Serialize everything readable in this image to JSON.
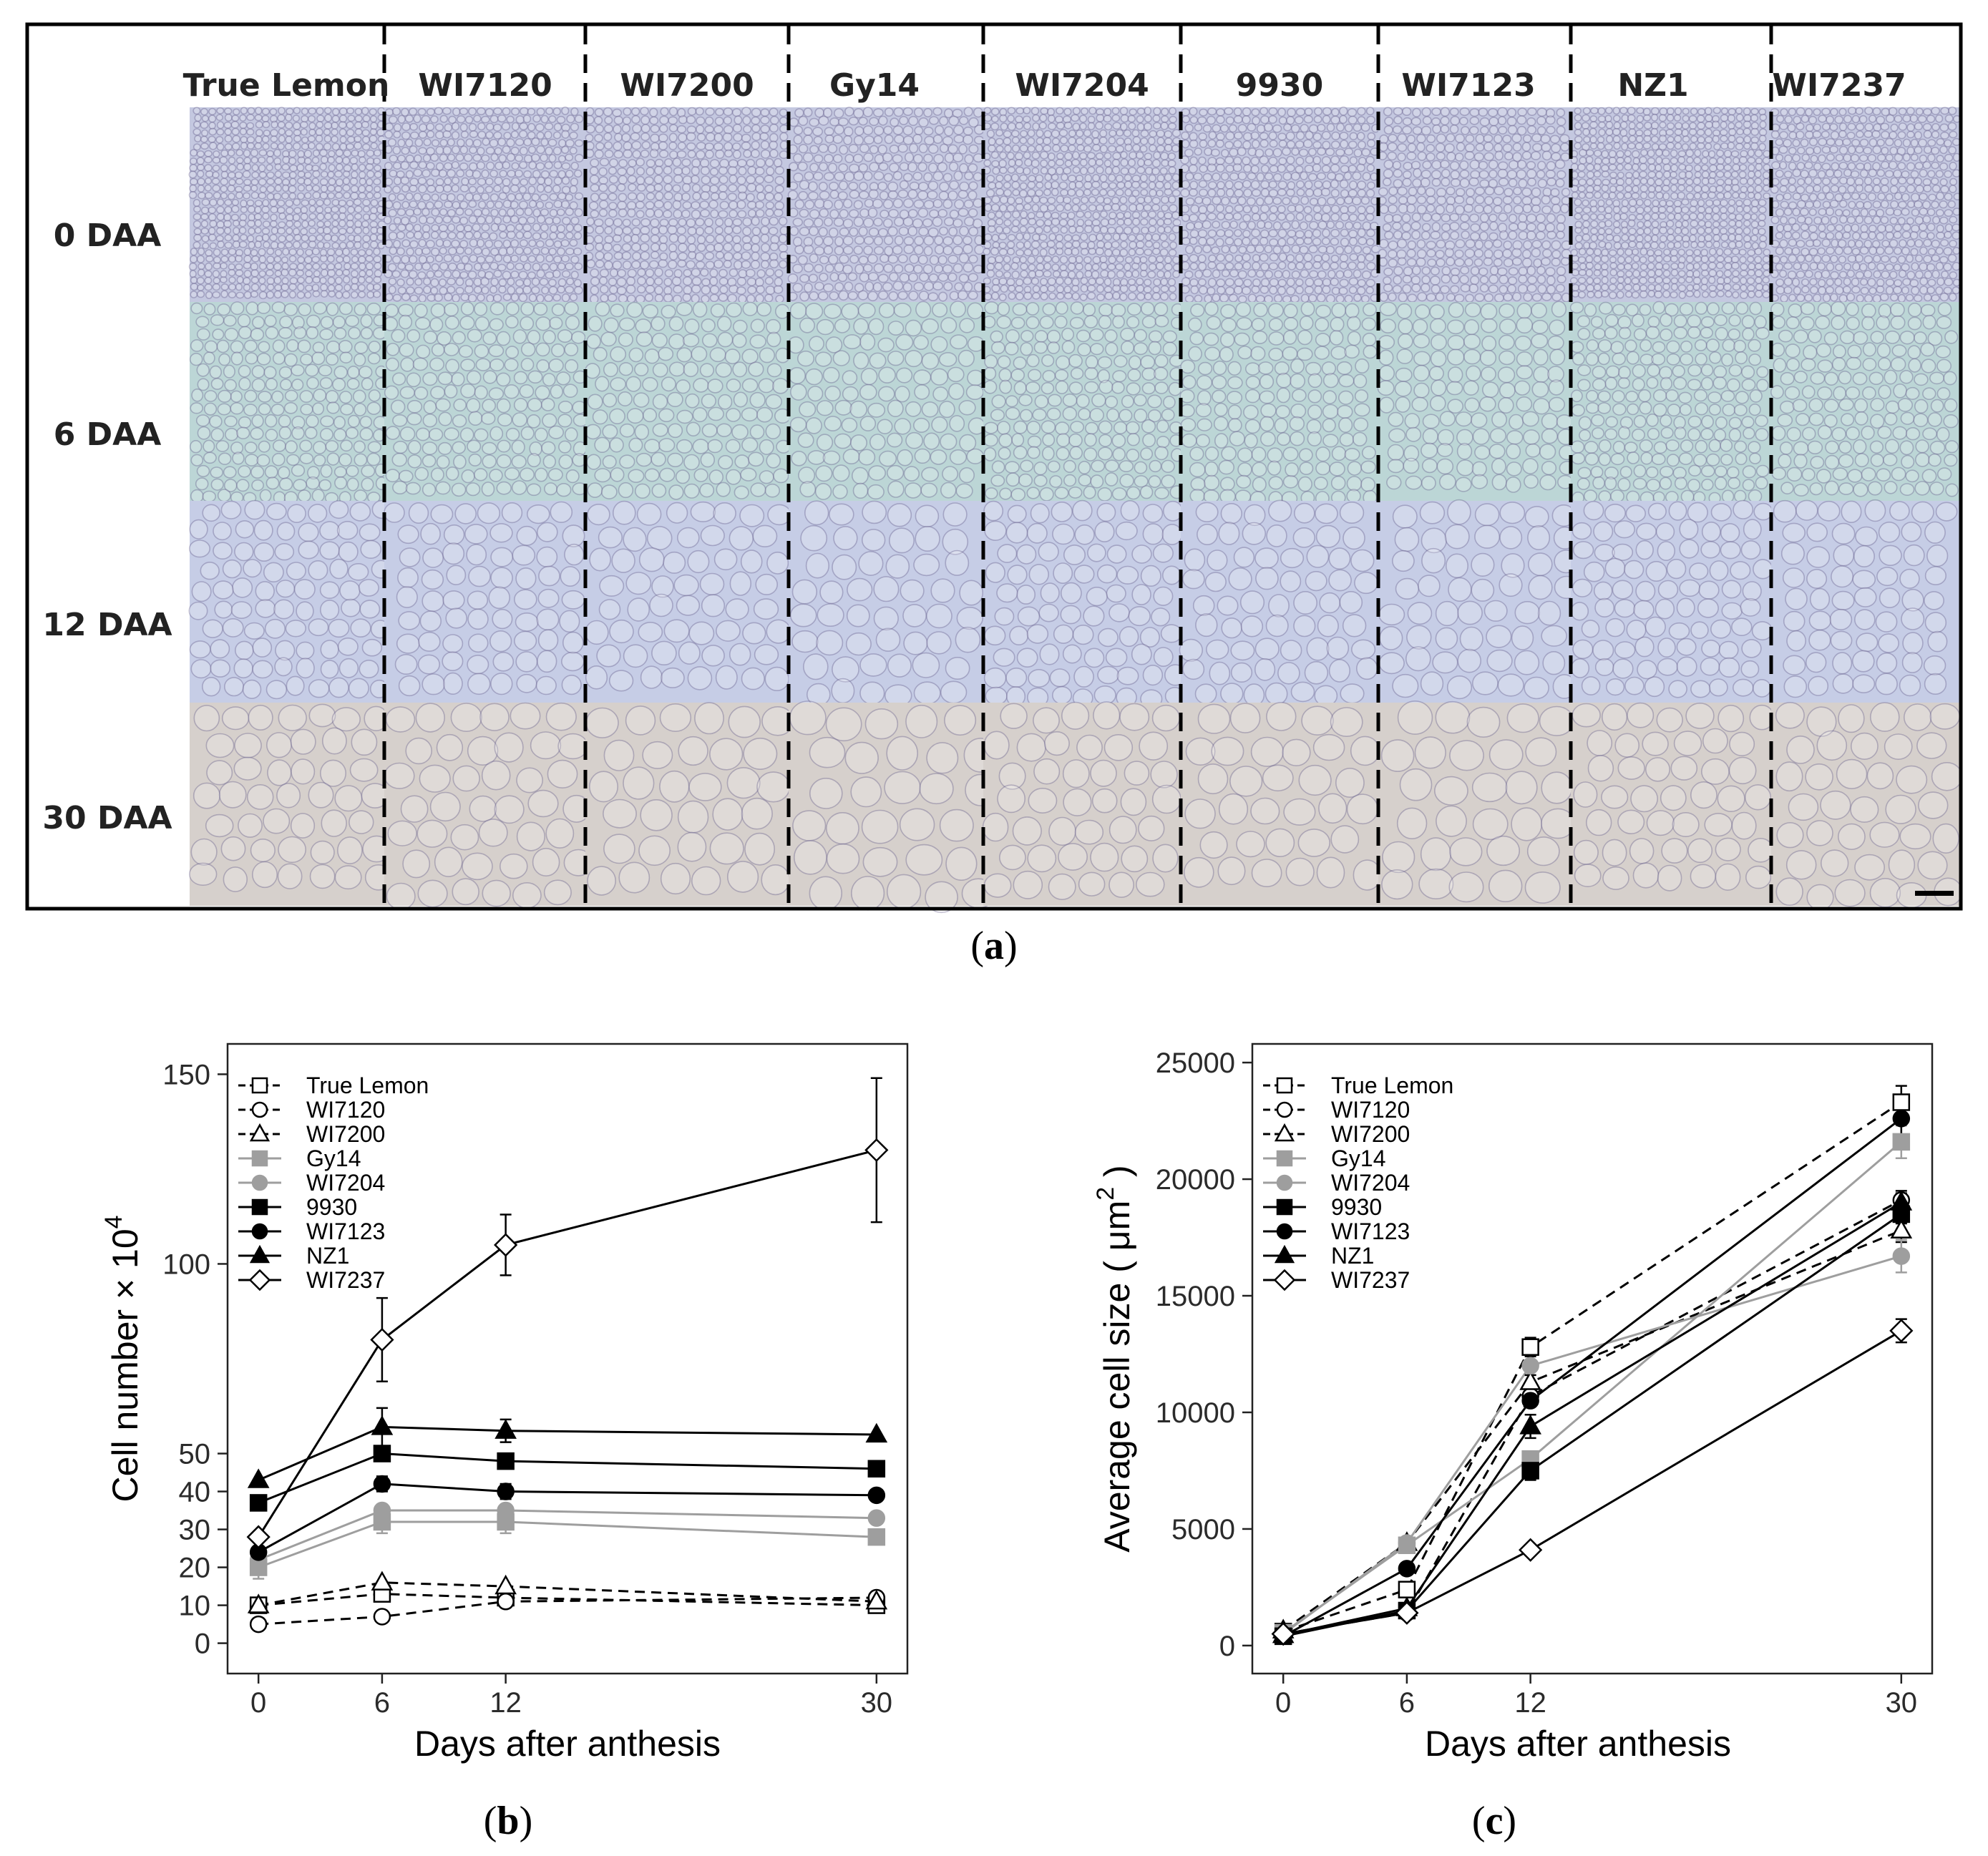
{
  "panel_labels": {
    "a": "a",
    "b": "b",
    "c": "c"
  },
  "micrograph_grid": {
    "columns": [
      "True Lemon",
      "WI7120",
      "WI7200",
      "Gy14",
      "WI7204",
      "9930",
      "WI7123",
      "NZ1",
      "WI7237"
    ],
    "rows": [
      "0 DAA",
      "6 DAA",
      "12 DAA",
      "30 DAA"
    ],
    "tints": [
      "#c4c8e0",
      "#bcd6d6",
      "#c6cde6",
      "#d6d0cc"
    ]
  },
  "series_style": [
    {
      "name": "True Lemon",
      "marker": "square",
      "filled": false,
      "color": "#000000",
      "dash": true
    },
    {
      "name": "WI7120",
      "marker": "circle",
      "filled": false,
      "color": "#000000",
      "dash": true
    },
    {
      "name": "WI7200",
      "marker": "triangle",
      "filled": false,
      "color": "#000000",
      "dash": true
    },
    {
      "name": "Gy14",
      "marker": "square",
      "filled": true,
      "color": "#9e9e9e",
      "dash": false
    },
    {
      "name": "WI7204",
      "marker": "circle",
      "filled": true,
      "color": "#9e9e9e",
      "dash": false
    },
    {
      "name": "9930",
      "marker": "square",
      "filled": true,
      "color": "#000000",
      "dash": false
    },
    {
      "name": "WI7123",
      "marker": "circle",
      "filled": true,
      "color": "#000000",
      "dash": false
    },
    {
      "name": "NZ1",
      "marker": "triangle",
      "filled": true,
      "color": "#000000",
      "dash": false
    },
    {
      "name": "WI7237",
      "marker": "diamond",
      "filled": false,
      "color": "#000000",
      "dash": false
    }
  ],
  "chart_data": [
    {
      "id": "b",
      "type": "line",
      "xlabel": "Days after anthesis",
      "ylabel": "Cell number × 10",
      "ylabel_superscript": "4",
      "x": [
        0,
        6,
        12,
        30
      ],
      "xlim": [
        -1.5,
        31.5
      ],
      "ylim": [
        -8,
        158
      ],
      "yticks": [
        0,
        10,
        20,
        30,
        40,
        50,
        100,
        150
      ],
      "legend_position": "top-left",
      "series": [
        {
          "name": "True Lemon",
          "values": [
            10,
            13,
            12,
            10
          ],
          "errors": [
            0,
            0,
            0,
            0
          ]
        },
        {
          "name": "WI7120",
          "values": [
            5,
            7,
            11,
            12
          ],
          "errors": [
            0,
            0,
            0,
            0
          ]
        },
        {
          "name": "WI7200",
          "values": [
            10,
            16,
            15,
            11
          ],
          "errors": [
            0,
            0,
            0,
            0
          ]
        },
        {
          "name": "Gy14",
          "values": [
            20,
            32,
            32,
            28
          ],
          "errors": [
            3,
            3,
            3,
            0
          ]
        },
        {
          "name": "WI7204",
          "values": [
            22,
            35,
            35,
            33
          ],
          "errors": [
            0,
            0,
            0,
            0
          ]
        },
        {
          "name": "9930",
          "values": [
            37,
            50,
            48,
            46
          ],
          "errors": [
            0,
            0,
            0,
            0
          ]
        },
        {
          "name": "WI7123",
          "values": [
            24,
            42,
            40,
            39
          ],
          "errors": [
            0,
            2,
            2,
            0
          ]
        },
        {
          "name": "NZ1",
          "values": [
            43,
            57,
            56,
            55
          ],
          "errors": [
            0,
            5,
            3,
            0
          ]
        },
        {
          "name": "WI7237",
          "values": [
            28,
            80,
            105,
            130
          ],
          "errors": [
            0,
            11,
            8,
            19
          ]
        }
      ]
    },
    {
      "id": "c",
      "type": "line",
      "xlabel": "Days after anthesis",
      "ylabel": "Average cell size ( μm",
      "ylabel_superscript": "2",
      "ylabel_close": " )",
      "x": [
        0,
        6,
        12,
        30
      ],
      "xlim": [
        -1.5,
        31.5
      ],
      "ylim": [
        -1200,
        25800
      ],
      "yticks": [
        0,
        5000,
        10000,
        15000,
        20000,
        25000
      ],
      "legend_position": "top-left",
      "series": [
        {
          "name": "True Lemon",
          "values": [
            600,
            2400,
            12800,
            23300
          ],
          "errors": [
            0,
            200,
            400,
            700
          ]
        },
        {
          "name": "WI7120",
          "values": [
            500,
            1400,
            10700,
            19100
          ],
          "errors": [
            0,
            0,
            0,
            400
          ]
        },
        {
          "name": "WI7200",
          "values": [
            650,
            4400,
            11300,
            17800
          ],
          "errors": [
            0,
            0,
            300,
            500
          ]
        },
        {
          "name": "Gy14",
          "values": [
            550,
            4300,
            8000,
            21600
          ],
          "errors": [
            0,
            0,
            300,
            700
          ]
        },
        {
          "name": "WI7204",
          "values": [
            500,
            4400,
            12000,
            16700
          ],
          "errors": [
            0,
            0,
            0,
            700
          ]
        },
        {
          "name": "9930",
          "values": [
            400,
            1500,
            7500,
            18500
          ],
          "errors": [
            0,
            0,
            400,
            400
          ]
        },
        {
          "name": "WI7123",
          "values": [
            400,
            3300,
            10500,
            22600
          ],
          "errors": [
            0,
            0,
            0,
            900
          ]
        },
        {
          "name": "NZ1",
          "values": [
            450,
            1600,
            9400,
            19000
          ],
          "errors": [
            0,
            0,
            500,
            400
          ]
        },
        {
          "name": "WI7237",
          "values": [
            500,
            1400,
            4100,
            13500
          ],
          "errors": [
            0,
            0,
            0,
            500
          ]
        }
      ]
    }
  ]
}
